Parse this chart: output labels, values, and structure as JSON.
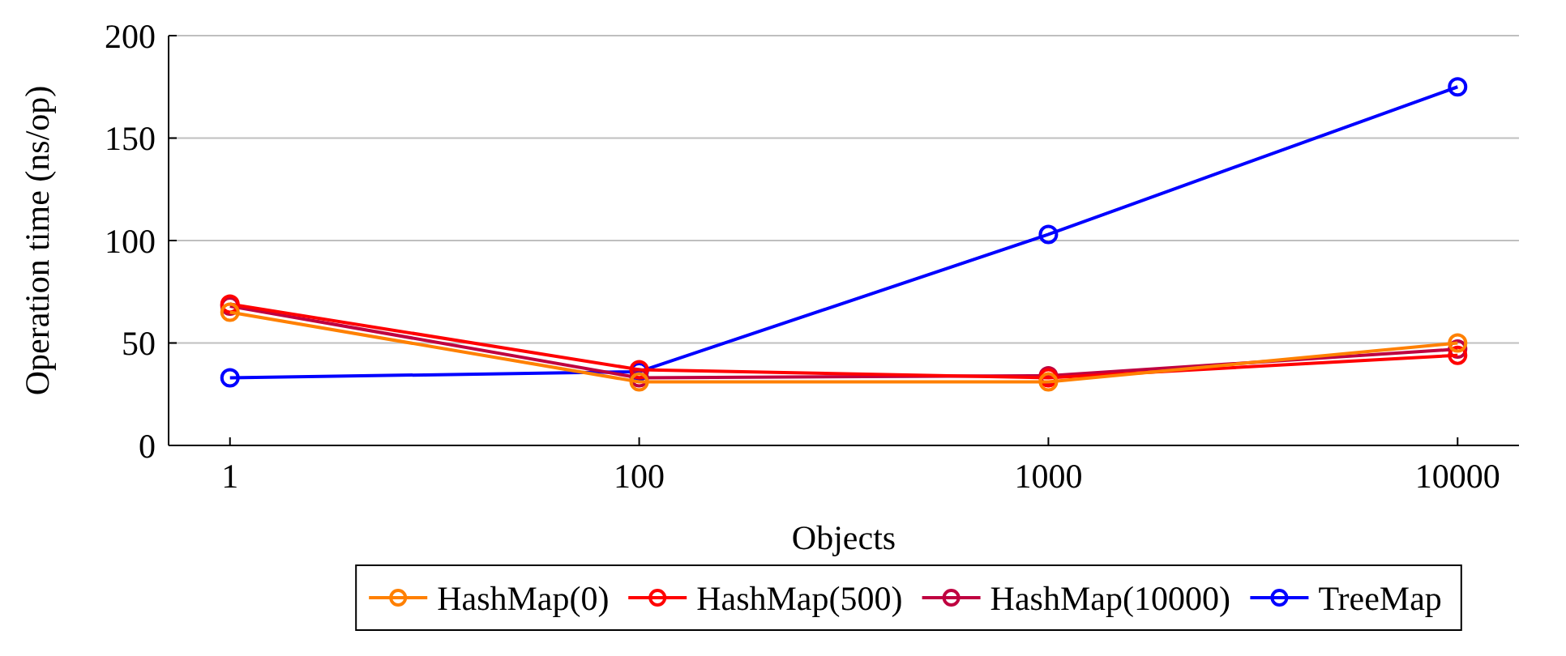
{
  "chart_data": {
    "type": "line",
    "xlabel": "Objects",
    "ylabel": "Operation time (ns/op)",
    "categories": [
      "1",
      "100",
      "1000",
      "10000"
    ],
    "ylim": [
      0,
      200
    ],
    "yticks": [
      0,
      50,
      100,
      150,
      200
    ],
    "grid": "y",
    "legend": "bottom",
    "marker": "circle",
    "line_style": "solid",
    "series": [
      {
        "name": "HashMap(0)",
        "color": "#ff8000",
        "values": [
          65,
          31,
          31,
          50
        ]
      },
      {
        "name": "HashMap(500)",
        "color": "#ff0000",
        "values": [
          69,
          37,
          33,
          44
        ]
      },
      {
        "name": "HashMap(10000)",
        "color": "#bf0040",
        "values": [
          68,
          33,
          34,
          47
        ]
      },
      {
        "name": "TreeMap",
        "color": "#0000ff",
        "values": [
          33,
          36,
          103,
          175
        ]
      }
    ]
  }
}
